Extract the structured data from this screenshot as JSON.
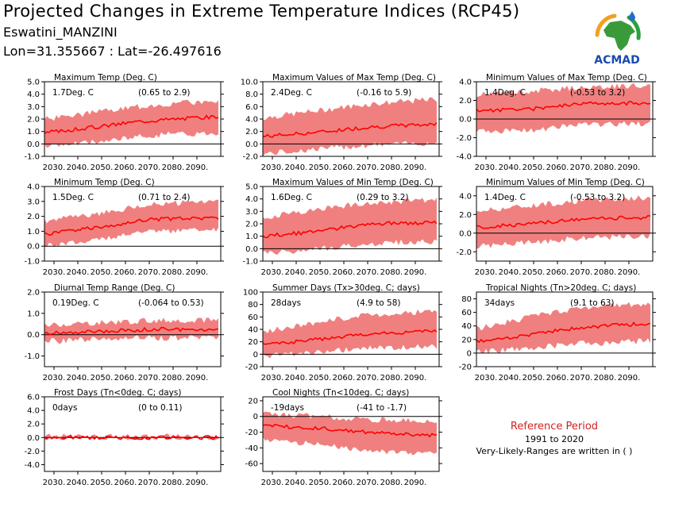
{
  "header": {
    "title": "Projected Changes in Extreme Temperature Indices (RCP45)",
    "station": "Eswatini_MANZINI",
    "coords": "Lon=31.355667 : Lat=-26.497616"
  },
  "logo": {
    "text": "ACMAD",
    "icon": "africa-map-icon"
  },
  "reference": {
    "title": "Reference Period",
    "period": "1991 to 2020",
    "note": "Very-Likely-Ranges are written in ( )"
  },
  "colors": {
    "band": "#f08080",
    "line": "#ff0000",
    "zero": "#000000",
    "ref_title": "#d42020"
  },
  "x_ticks": [
    "2030.",
    "2040.",
    "2050.",
    "2060.",
    "2070.",
    "2080.",
    "2090."
  ],
  "chart_data": [
    {
      "id": "txmean",
      "type": "area",
      "title": "Maximum Temp (Deg. C)",
      "mean_label": "1.7Deg. C",
      "range_label": "(0.65 to 2.9)",
      "ylim": [
        -1.0,
        5.0
      ],
      "yticks": [
        -1.0,
        0.0,
        1.0,
        2.0,
        3.0,
        4.0,
        5.0
      ],
      "xlim": [
        2026,
        2100
      ],
      "x_start": 2026,
      "x_end": 2099,
      "median_path": [
        [
          2026,
          0.9
        ],
        [
          2045,
          1.3
        ],
        [
          2065,
          1.8
        ],
        [
          2080,
          2.0
        ],
        [
          2099,
          2.2
        ]
      ],
      "band_lo": [
        [
          2026,
          -0.2
        ],
        [
          2050,
          0.2
        ],
        [
          2070,
          0.7
        ],
        [
          2099,
          0.9
        ]
      ],
      "band_hi": [
        [
          2026,
          2.0
        ],
        [
          2050,
          2.6
        ],
        [
          2070,
          3.1
        ],
        [
          2099,
          3.5
        ]
      ],
      "seed": 3
    },
    {
      "id": "txx",
      "type": "area",
      "title": "Maximum Values of Max Temp (Deg. C)",
      "mean_label": "2.4Deg. C",
      "range_label": "(-0.16 to 5.9)",
      "ylim": [
        -2.0,
        10.0
      ],
      "yticks": [
        -2.0,
        0.0,
        2.0,
        4.0,
        6.0,
        8.0,
        10.0
      ],
      "xlim": [
        2026,
        2100
      ],
      "x_start": 2026,
      "x_end": 2099,
      "median_path": [
        [
          2026,
          1.2
        ],
        [
          2050,
          1.9
        ],
        [
          2070,
          2.7
        ],
        [
          2099,
          3.2
        ]
      ],
      "band_lo": [
        [
          2026,
          -1.6
        ],
        [
          2050,
          -0.8
        ],
        [
          2070,
          -0.2
        ],
        [
          2099,
          0.2
        ]
      ],
      "band_hi": [
        [
          2026,
          4.2
        ],
        [
          2050,
          5.4
        ],
        [
          2070,
          6.4
        ],
        [
          2099,
          7.2
        ]
      ],
      "seed": 7
    },
    {
      "id": "txn",
      "type": "area",
      "title": "Minimum Values of Max Temp (Deg. C)",
      "mean_label": "1.4Deg. C",
      "range_label": "(-0.53 to 3.2)",
      "ylim": [
        -4.0,
        4.0
      ],
      "yticks": [
        -4.0,
        -2.0,
        0.0,
        2.0,
        4.0
      ],
      "xlim": [
        2026,
        2100
      ],
      "x_start": 2026,
      "x_end": 2099,
      "median_path": [
        [
          2026,
          0.9
        ],
        [
          2050,
          1.1
        ],
        [
          2070,
          1.7
        ],
        [
          2099,
          1.7
        ]
      ],
      "band_lo": [
        [
          2026,
          -1.3
        ],
        [
          2050,
          -1.2
        ],
        [
          2070,
          -0.6
        ],
        [
          2099,
          -0.5
        ]
      ],
      "band_hi": [
        [
          2026,
          2.6
        ],
        [
          2050,
          3.0
        ],
        [
          2070,
          3.4
        ],
        [
          2099,
          3.6
        ]
      ],
      "seed": 11
    },
    {
      "id": "tnmean",
      "type": "area",
      "title": "Minimum Temp (Deg. C)",
      "mean_label": "1.5Deg. C",
      "range_label": "(0.71 to 2.4)",
      "ylim": [
        -1.0,
        4.0
      ],
      "yticks": [
        -1.0,
        0.0,
        1.0,
        2.0,
        3.0,
        4.0
      ],
      "xlim": [
        2026,
        2100
      ],
      "x_start": 2026,
      "x_end": 2099,
      "median_path": [
        [
          2026,
          0.8
        ],
        [
          2050,
          1.3
        ],
        [
          2070,
          1.8
        ],
        [
          2099,
          1.9
        ]
      ],
      "band_lo": [
        [
          2026,
          0.0
        ],
        [
          2050,
          0.5
        ],
        [
          2070,
          1.0
        ],
        [
          2099,
          1.1
        ]
      ],
      "band_hi": [
        [
          2026,
          1.7
        ],
        [
          2050,
          2.2
        ],
        [
          2070,
          2.8
        ],
        [
          2099,
          3.0
        ]
      ],
      "seed": 5
    },
    {
      "id": "tnx",
      "type": "area",
      "title": "Maximum Values of Min Temp (Deg. C)",
      "mean_label": "1.6Deg. C",
      "range_label": "(0.29 to 3.2)",
      "ylim": [
        -1.0,
        5.0
      ],
      "yticks": [
        -1.0,
        0.0,
        1.0,
        2.0,
        3.0,
        4.0,
        5.0
      ],
      "xlim": [
        2026,
        2100
      ],
      "x_start": 2026,
      "x_end": 2099,
      "median_path": [
        [
          2026,
          1.0
        ],
        [
          2050,
          1.4
        ],
        [
          2070,
          2.0
        ],
        [
          2099,
          2.1
        ]
      ],
      "band_lo": [
        [
          2026,
          -0.4
        ],
        [
          2050,
          0.0
        ],
        [
          2070,
          0.4
        ],
        [
          2099,
          0.6
        ]
      ],
      "band_hi": [
        [
          2026,
          2.5
        ],
        [
          2050,
          3.2
        ],
        [
          2070,
          3.7
        ],
        [
          2099,
          3.9
        ]
      ],
      "seed": 13
    },
    {
      "id": "tnn",
      "type": "area",
      "title": "Minimum Values of Min Temp (Deg. C)",
      "mean_label": "1.4Deg. C",
      "range_label": "(-0.53 to 3.2)",
      "ylim": [
        -3.0,
        5.0
      ],
      "yticks": [
        -2.0,
        0.0,
        2.0,
        4.0
      ],
      "xlim": [
        2026,
        2100
      ],
      "x_start": 2026,
      "x_end": 2099,
      "median_path": [
        [
          2026,
          0.6
        ],
        [
          2050,
          1.0
        ],
        [
          2070,
          1.5
        ],
        [
          2099,
          1.7
        ]
      ],
      "band_lo": [
        [
          2026,
          -1.4
        ],
        [
          2050,
          -1.0
        ],
        [
          2070,
          -0.5
        ],
        [
          2099,
          -0.3
        ]
      ],
      "band_hi": [
        [
          2026,
          2.4
        ],
        [
          2050,
          3.0
        ],
        [
          2070,
          3.5
        ],
        [
          2099,
          3.8
        ]
      ],
      "seed": 17
    },
    {
      "id": "dtr",
      "type": "area",
      "title": "Diurnal Temp Range (Deg. C)",
      "mean_label": "0.19Deg. C",
      "range_label": "(-0.064 to 0.53)",
      "ylim": [
        -1.5,
        2.0
      ],
      "yticks": [
        -1.0,
        0.0,
        1.0,
        2.0
      ],
      "xlim": [
        2026,
        2100
      ],
      "x_start": 2026,
      "x_end": 2099,
      "median_path": [
        [
          2026,
          0.05
        ],
        [
          2050,
          0.15
        ],
        [
          2070,
          0.25
        ],
        [
          2099,
          0.25
        ]
      ],
      "band_lo": [
        [
          2026,
          -0.3
        ],
        [
          2050,
          -0.2
        ],
        [
          2070,
          -0.15
        ],
        [
          2099,
          -0.15
        ]
      ],
      "band_hi": [
        [
          2026,
          0.45
        ],
        [
          2050,
          0.55
        ],
        [
          2070,
          0.65
        ],
        [
          2099,
          0.7
        ]
      ],
      "seed": 19
    },
    {
      "id": "su",
      "type": "area",
      "title": "Summer Days (Tx>30deg. C; days)",
      "mean_label": "28days",
      "range_label": "(4.9 to 58)",
      "ylim": [
        -20,
        100
      ],
      "yticks": [
        -20,
        0,
        20,
        40,
        60,
        80,
        100
      ],
      "xlim": [
        2026,
        2100
      ],
      "x_start": 2026,
      "x_end": 2099,
      "median_path": [
        [
          2026,
          15
        ],
        [
          2050,
          24
        ],
        [
          2070,
          33
        ],
        [
          2099,
          38
        ]
      ],
      "band_lo": [
        [
          2026,
          -3
        ],
        [
          2050,
          3
        ],
        [
          2070,
          10
        ],
        [
          2099,
          13
        ]
      ],
      "band_hi": [
        [
          2026,
          36
        ],
        [
          2050,
          52
        ],
        [
          2070,
          63
        ],
        [
          2099,
          70
        ]
      ],
      "seed": 23
    },
    {
      "id": "tr",
      "type": "area",
      "title": "Tropical Nights (Tn>20deg. C; days)",
      "mean_label": "34days",
      "range_label": "(9.1 to 63)",
      "ylim": [
        -20,
        90
      ],
      "yticks": [
        -20,
        0,
        20,
        40,
        60,
        80
      ],
      "xlim": [
        2026,
        2100
      ],
      "x_start": 2026,
      "x_end": 2099,
      "median_path": [
        [
          2026,
          17
        ],
        [
          2050,
          28
        ],
        [
          2070,
          38
        ],
        [
          2099,
          44
        ]
      ],
      "band_lo": [
        [
          2026,
          2
        ],
        [
          2050,
          8
        ],
        [
          2070,
          14
        ],
        [
          2099,
          18
        ]
      ],
      "band_hi": [
        [
          2026,
          36
        ],
        [
          2050,
          54
        ],
        [
          2070,
          66
        ],
        [
          2099,
          74
        ]
      ],
      "seed": 29
    },
    {
      "id": "fd",
      "type": "area",
      "title": "Frost Days (Tn<0deg. C; days)",
      "mean_label": "0days",
      "range_label": "(0 to 0.11)",
      "ylim": [
        -5.0,
        6.0
      ],
      "yticks": [
        -4.0,
        -2.0,
        0.0,
        2.0,
        4.0,
        6.0
      ],
      "xlim": [
        2026,
        2100
      ],
      "x_start": 2026,
      "x_end": 2099,
      "median_path": [
        [
          2026,
          0.0
        ],
        [
          2099,
          0.0
        ]
      ],
      "band_lo": [
        [
          2026,
          0.0
        ],
        [
          2099,
          0.0
        ]
      ],
      "band_hi": [
        [
          2026,
          0.15
        ],
        [
          2099,
          0.1
        ]
      ],
      "seed": 31
    },
    {
      "id": "tn10",
      "type": "area",
      "title": "Cool Nights (Tn<10deg. C; days)",
      "mean_label": "-19days",
      "range_label": "(-41 to -1.7)",
      "ylim": [
        -70,
        25
      ],
      "yticks": [
        -60,
        -40,
        -20,
        0,
        20
      ],
      "xlim": [
        2026,
        2100
      ],
      "x_start": 2026,
      "x_end": 2099,
      "median_path": [
        [
          2026,
          -12
        ],
        [
          2050,
          -15
        ],
        [
          2070,
          -20
        ],
        [
          2099,
          -24
        ]
      ],
      "band_lo": [
        [
          2026,
          -30
        ],
        [
          2050,
          -36
        ],
        [
          2070,
          -44
        ],
        [
          2099,
          -48
        ]
      ],
      "band_hi": [
        [
          2026,
          3
        ],
        [
          2050,
          0
        ],
        [
          2070,
          -4
        ],
        [
          2099,
          -6
        ]
      ],
      "seed": 37
    }
  ]
}
